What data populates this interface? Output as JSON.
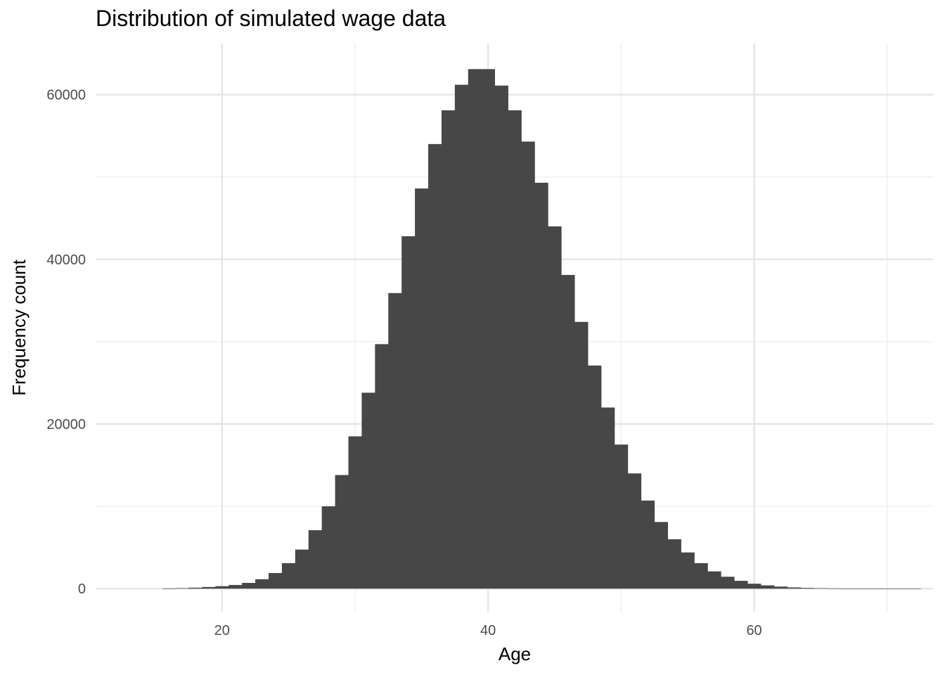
{
  "chart_data": {
    "type": "bar",
    "title": "Distribution of simulated wage data",
    "xlabel": "Age",
    "ylabel": "Frequency count",
    "xlim": [
      10.5,
      73.5
    ],
    "ylim": [
      -2800,
      66200
    ],
    "x_ticks": [
      20,
      40,
      60
    ],
    "y_ticks": [
      0,
      20000,
      40000,
      60000
    ],
    "x_minor_grid": [
      30,
      50,
      70
    ],
    "y_minor_grid": [
      10000,
      30000,
      50000
    ],
    "grid": true,
    "legend": "none",
    "bin_width": 1,
    "x": [
      16,
      17,
      18,
      19,
      20,
      21,
      22,
      23,
      24,
      25,
      26,
      27,
      28,
      29,
      30,
      31,
      32,
      33,
      34,
      35,
      36,
      37,
      38,
      39,
      40,
      41,
      42,
      43,
      44,
      45,
      46,
      47,
      48,
      49,
      50,
      51,
      52,
      53,
      54,
      55,
      56,
      57,
      58,
      59,
      60,
      61,
      62,
      63,
      64,
      65,
      66,
      67,
      68,
      69,
      70,
      71,
      72
    ],
    "values": [
      30,
      60,
      120,
      200,
      300,
      450,
      700,
      1150,
      1900,
      3100,
      4750,
      7100,
      10000,
      13800,
      18500,
      23800,
      29700,
      35900,
      42800,
      48600,
      54000,
      58100,
      61200,
      63100,
      63100,
      61100,
      58100,
      54300,
      49300,
      44000,
      38100,
      32400,
      27100,
      22000,
      17500,
      14000,
      10700,
      8100,
      6000,
      4400,
      3100,
      2100,
      1450,
      950,
      600,
      400,
      250,
      150,
      90,
      55,
      35,
      20,
      12,
      8,
      5,
      3,
      2
    ],
    "bar_color": "#474747"
  }
}
